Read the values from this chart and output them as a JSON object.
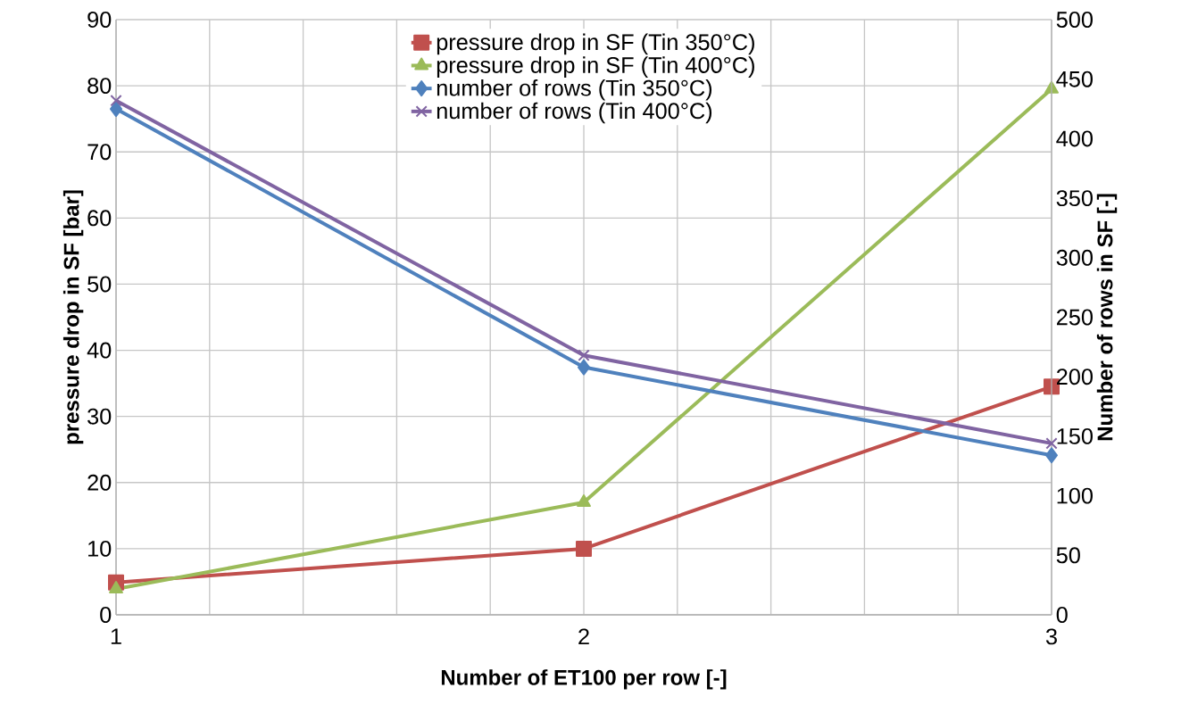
{
  "chart_data": {
    "type": "line",
    "xlabel": "Number of ET100 per row [-]",
    "ylabel": "pressure drop in SF [bar]",
    "y2label": "Number of rows in SF [-]",
    "x": [
      1,
      2,
      3
    ],
    "series": [
      {
        "name": "pressure drop in SF (Tin 350°C)",
        "color": "#c0504d",
        "marker": "square",
        "values": [
          4.9,
          10.0,
          34.5
        ]
      },
      {
        "name": "pressure drop in SF (Tin 400°C)",
        "color": "#9bbb59",
        "marker": "triangle",
        "values": [
          3.9,
          17.0,
          79.5
        ]
      },
      {
        "name": "number of rows (Tin 350°C)",
        "color": "#4f81bd",
        "marker": "diamond",
        "axis": "y2",
        "values": [
          425,
          208,
          134
        ]
      },
      {
        "name": "number of rows (Tin 400°C)",
        "color": "#8064a2",
        "marker": "cross",
        "axis": "y2",
        "values": [
          432,
          218,
          144
        ]
      }
    ],
    "xlim": [
      1,
      3
    ],
    "xticks": [
      1,
      {
        "value": 1.2,
        "label": null
      },
      {
        "value": 1.4,
        "label": null
      },
      {
        "value": 1.6,
        "label": null
      },
      {
        "value": 1.8,
        "label": null
      },
      2,
      {
        "value": 2.2,
        "label": null
      },
      {
        "value": 2.4,
        "label": null
      },
      {
        "value": 2.6,
        "label": null
      },
      {
        "value": 2.8,
        "label": null
      },
      3
    ],
    "ylim": [
      0,
      90
    ],
    "yticks": [
      0,
      10,
      20,
      30,
      40,
      50,
      60,
      70,
      80,
      90
    ],
    "y2lim": [
      0,
      500
    ],
    "y2ticks": [
      0,
      50,
      100,
      150,
      200,
      250,
      300,
      350,
      400,
      450,
      500
    ],
    "grid": true,
    "legend": "top",
    "line_style": "solid"
  }
}
